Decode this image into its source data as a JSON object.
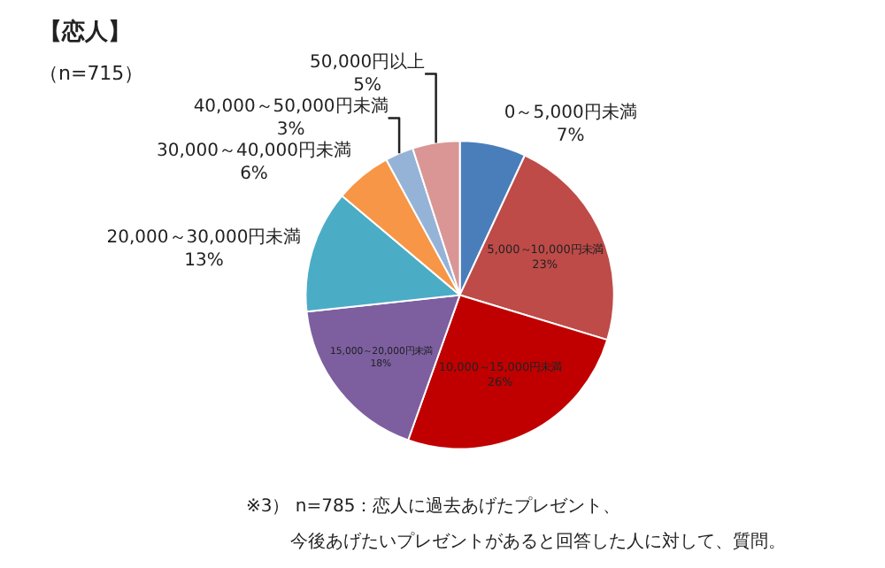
{
  "chart_data": {
    "type": "pie",
    "title": "【恋人】",
    "subtitle": "（n=715）",
    "categories": [
      "0～5,000円未満",
      "5,000～10,000円未満",
      "10,000～15,000円未満",
      "15,000～20,000円未満",
      "20,000～30,000円未満",
      "30,000～40,000円未満",
      "40,000～50,000円未満",
      "50,000円以上"
    ],
    "values": [
      7,
      23,
      26,
      18,
      13,
      6,
      3,
      5
    ],
    "value_labels": [
      "7%",
      "23%",
      "26%",
      "18%",
      "13%",
      "6%",
      "3%",
      "5%"
    ],
    "colors": [
      "#4a7ebb",
      "#be4b48",
      "#c00000",
      "#7d5fa0",
      "#4bacc6",
      "#f79646",
      "#95b3d7",
      "#d99694"
    ],
    "annotations": [
      "※3） n=785：恋人に過去あげたプレゼント、",
      "今後あげたいプレゼントがあると回答した人に対して、質問。"
    ],
    "legend": false
  }
}
